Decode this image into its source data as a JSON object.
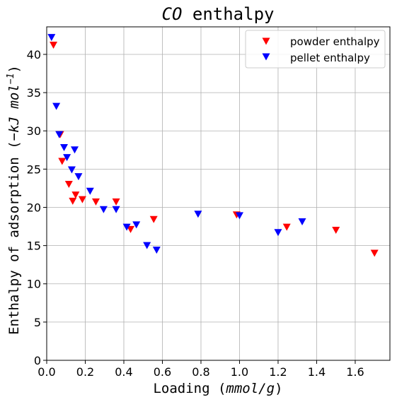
{
  "chart_data": {
    "type": "scatter",
    "title_italic": "CO",
    "title_rest": " enthalpy",
    "xlabel_prefix": "Loading (",
    "xlabel_unit": "mmol/g",
    "xlabel_suffix": ")",
    "ylabel_prefix": "Enthalpy of adsorption (",
    "ylabel_unit": "−kJ mol",
    "ylabel_exp": "−1",
    "ylabel_suffix": ")",
    "xlim": [
      0,
      1.78
    ],
    "ylim": [
      0,
      43.6
    ],
    "xticks": [
      0.0,
      0.2,
      0.4,
      0.6,
      0.8,
      1.0,
      1.2,
      1.4,
      1.6
    ],
    "xtick_labels": [
      "0.0",
      "0.2",
      "0.4",
      "0.6",
      "0.8",
      "1.0",
      "1.2",
      "1.4",
      "1.6"
    ],
    "yticks": [
      0,
      5,
      10,
      15,
      20,
      25,
      30,
      35,
      40
    ],
    "ytick_labels": [
      "0",
      "5",
      "10",
      "15",
      "20",
      "25",
      "30",
      "35",
      "40"
    ],
    "grid": true,
    "legend_position": "top-right",
    "marker": "triangle-down",
    "series": [
      {
        "name": "powder enthalpy",
        "color": "#ff0000",
        "x": [
          0.035,
          0.07,
          0.08,
          0.115,
          0.135,
          0.15,
          0.185,
          0.255,
          0.36,
          0.435,
          0.555,
          0.985,
          1.245,
          1.5,
          1.7
        ],
        "y": [
          41.2,
          29.5,
          26.0,
          23.0,
          20.8,
          21.6,
          21.0,
          20.7,
          20.7,
          17.1,
          18.4,
          19.0,
          17.4,
          17.0,
          14.0
        ]
      },
      {
        "name": "pellet enthalpy",
        "color": "#0000ff",
        "x": [
          0.025,
          0.05,
          0.065,
          0.09,
          0.105,
          0.13,
          0.145,
          0.165,
          0.225,
          0.295,
          0.36,
          0.415,
          0.465,
          0.52,
          0.57,
          0.785,
          1.0,
          1.2,
          1.325
        ],
        "y": [
          42.2,
          33.2,
          29.5,
          27.8,
          26.5,
          24.9,
          27.5,
          24.0,
          22.1,
          19.7,
          19.7,
          17.4,
          17.7,
          15.0,
          14.4,
          19.1,
          18.9,
          16.7,
          18.1
        ]
      }
    ]
  }
}
